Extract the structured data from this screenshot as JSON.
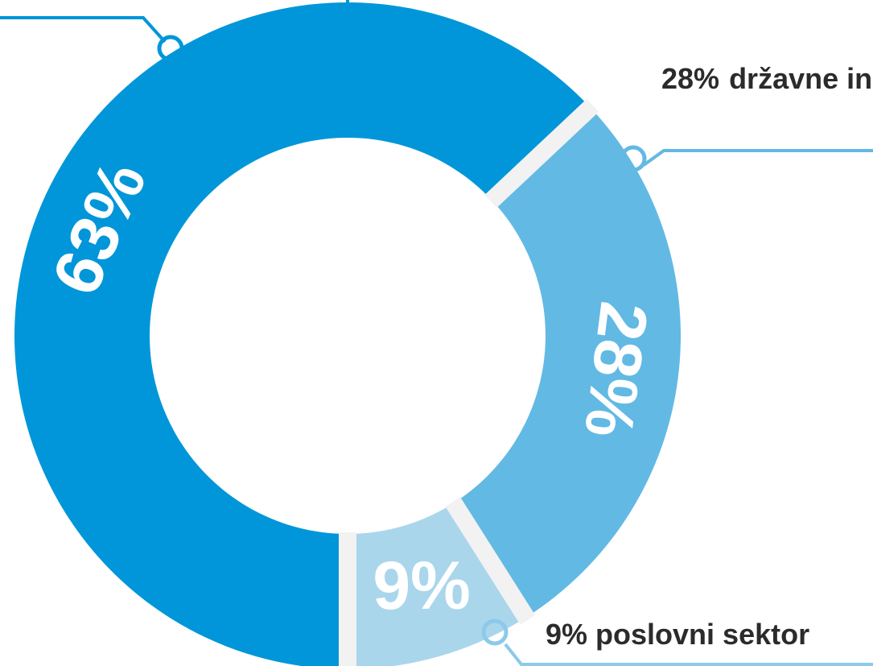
{
  "chart_data": {
    "type": "donut",
    "categories": [
      null,
      "državne institucije",
      "poslovni sektor"
    ],
    "values": [
      63,
      28,
      9
    ],
    "value_labels": [
      "63%",
      "28%",
      "9%"
    ],
    "colors": [
      "#0096d9",
      "#62b9e4",
      "#aad6ec"
    ]
  }
}
